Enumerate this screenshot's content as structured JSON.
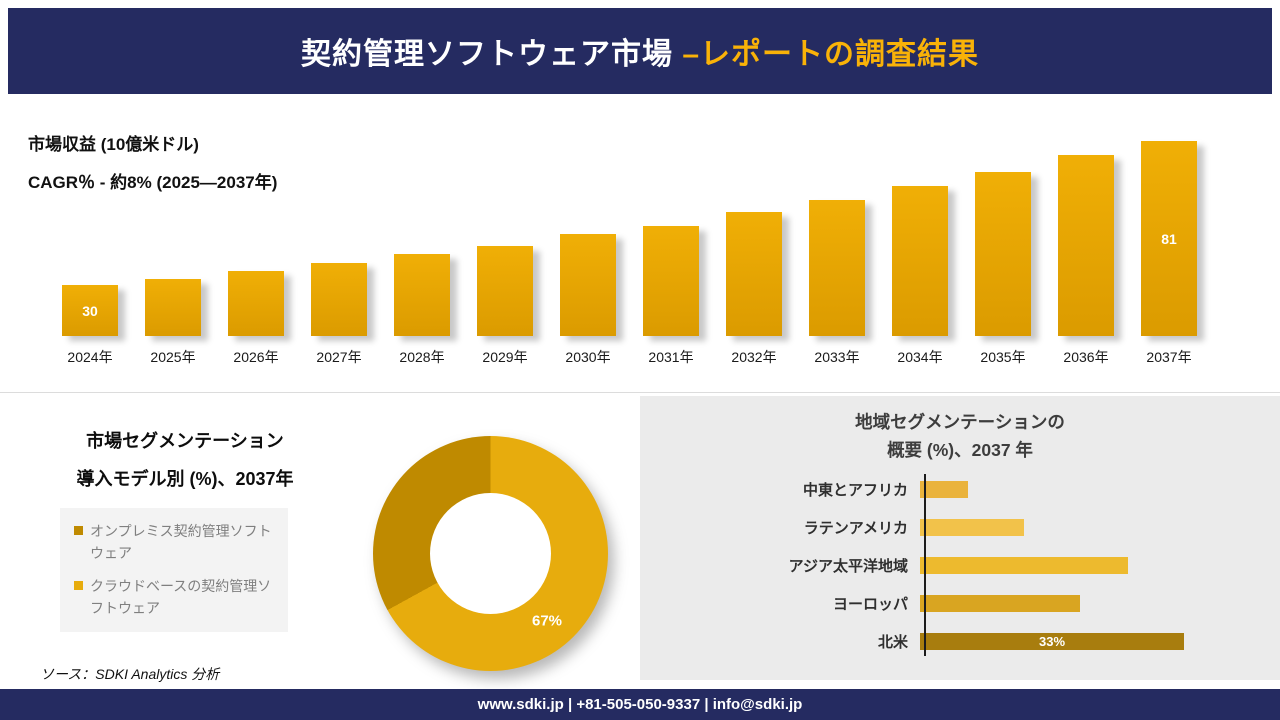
{
  "header": {
    "title_main": "契約管理ソフトウェア市場 ",
    "title_accent": "–レポートの調査結果"
  },
  "revenue_section": {
    "metric_label": "市場収益 (10億米ドル)",
    "cagr_label": "CAGR％ - 約8% (2025―2037年)"
  },
  "segmentation_section": {
    "title_line1": "市場セグメンテーション",
    "title_line2": "導入モデル別 (%)、2037年",
    "source": "ソース：SDKI Analytics 分析"
  },
  "region_section": {
    "title_line1": "地域セグメンテーションの",
    "title_line2": "概要 (%)、2037 年"
  },
  "footer": {
    "contact": "www.sdki.jp | +81-505-050-9337 | info@sdki.jp"
  },
  "colors": {
    "navy": "#252b61",
    "accent_gold": "#f9b208",
    "bar_gold_top": "#f0af06",
    "bar_gold_bottom": "#db9b00"
  },
  "chart_data": [
    {
      "id": "market-revenue",
      "type": "bar",
      "title": "市場収益 (10億米ドル)",
      "subtitle": "CAGR％ - 約8% (2025―2037年)",
      "categories": [
        "2024年",
        "2025年",
        "2026年",
        "2027年",
        "2028年",
        "2029年",
        "2030年",
        "2031年",
        "2032年",
        "2033年",
        "2034年",
        "2035年",
        "2036年",
        "2037年"
      ],
      "values": [
        30,
        32,
        35,
        38,
        41,
        44,
        48,
        51,
        56,
        60,
        65,
        70,
        76,
        81
      ],
      "data_labels": [
        "30",
        "",
        "",
        "",
        "",
        "",
        "",
        "",
        "",
        "",
        "",
        "",
        "",
        "81"
      ],
      "ylim": [
        12,
        85
      ],
      "grid": false,
      "legend_position": "none"
    },
    {
      "id": "deployment-split",
      "type": "pie",
      "donut": true,
      "title": "市場セグメンテーション 導入モデル別 (%)、2037年",
      "labels": [
        "クラウドベースの契約管理ソフトウェア",
        "オンプレミス契約管理ソフトウェア"
      ],
      "values": [
        67,
        33
      ],
      "colors": [
        "#e7ac0d",
        "#bf8a00"
      ],
      "data_labels": [
        "67%",
        ""
      ],
      "legend_position": "left",
      "legend": [
        {
          "label": "オンプレミス契約管理ソフトウェア",
          "color": "#bf8a00"
        },
        {
          "label": "クラウドベースの契約管理ソフトウェア",
          "color": "#e7ac0d"
        }
      ]
    },
    {
      "id": "regional-overview",
      "type": "bar",
      "orientation": "horizontal",
      "title": "地域セグメンテーションの概要 (%)、2037 年",
      "categories": [
        "中東とアフリカ",
        "ラテンアメリカ",
        "アジア太平洋地域",
        "ヨーロッパ",
        "北米"
      ],
      "values": [
        6,
        13,
        26,
        20,
        33
      ],
      "values_note": "only 北米 33% is labeled; other values estimated from bar lengths",
      "data_labels": [
        "",
        "",
        "",
        "",
        "33%"
      ],
      "colors": [
        "#eab33c",
        "#f2c24a",
        "#edba2e",
        "#d9a521",
        "#a87d0e"
      ],
      "xlim": [
        0,
        40
      ],
      "grid": false,
      "legend_position": "none"
    }
  ]
}
